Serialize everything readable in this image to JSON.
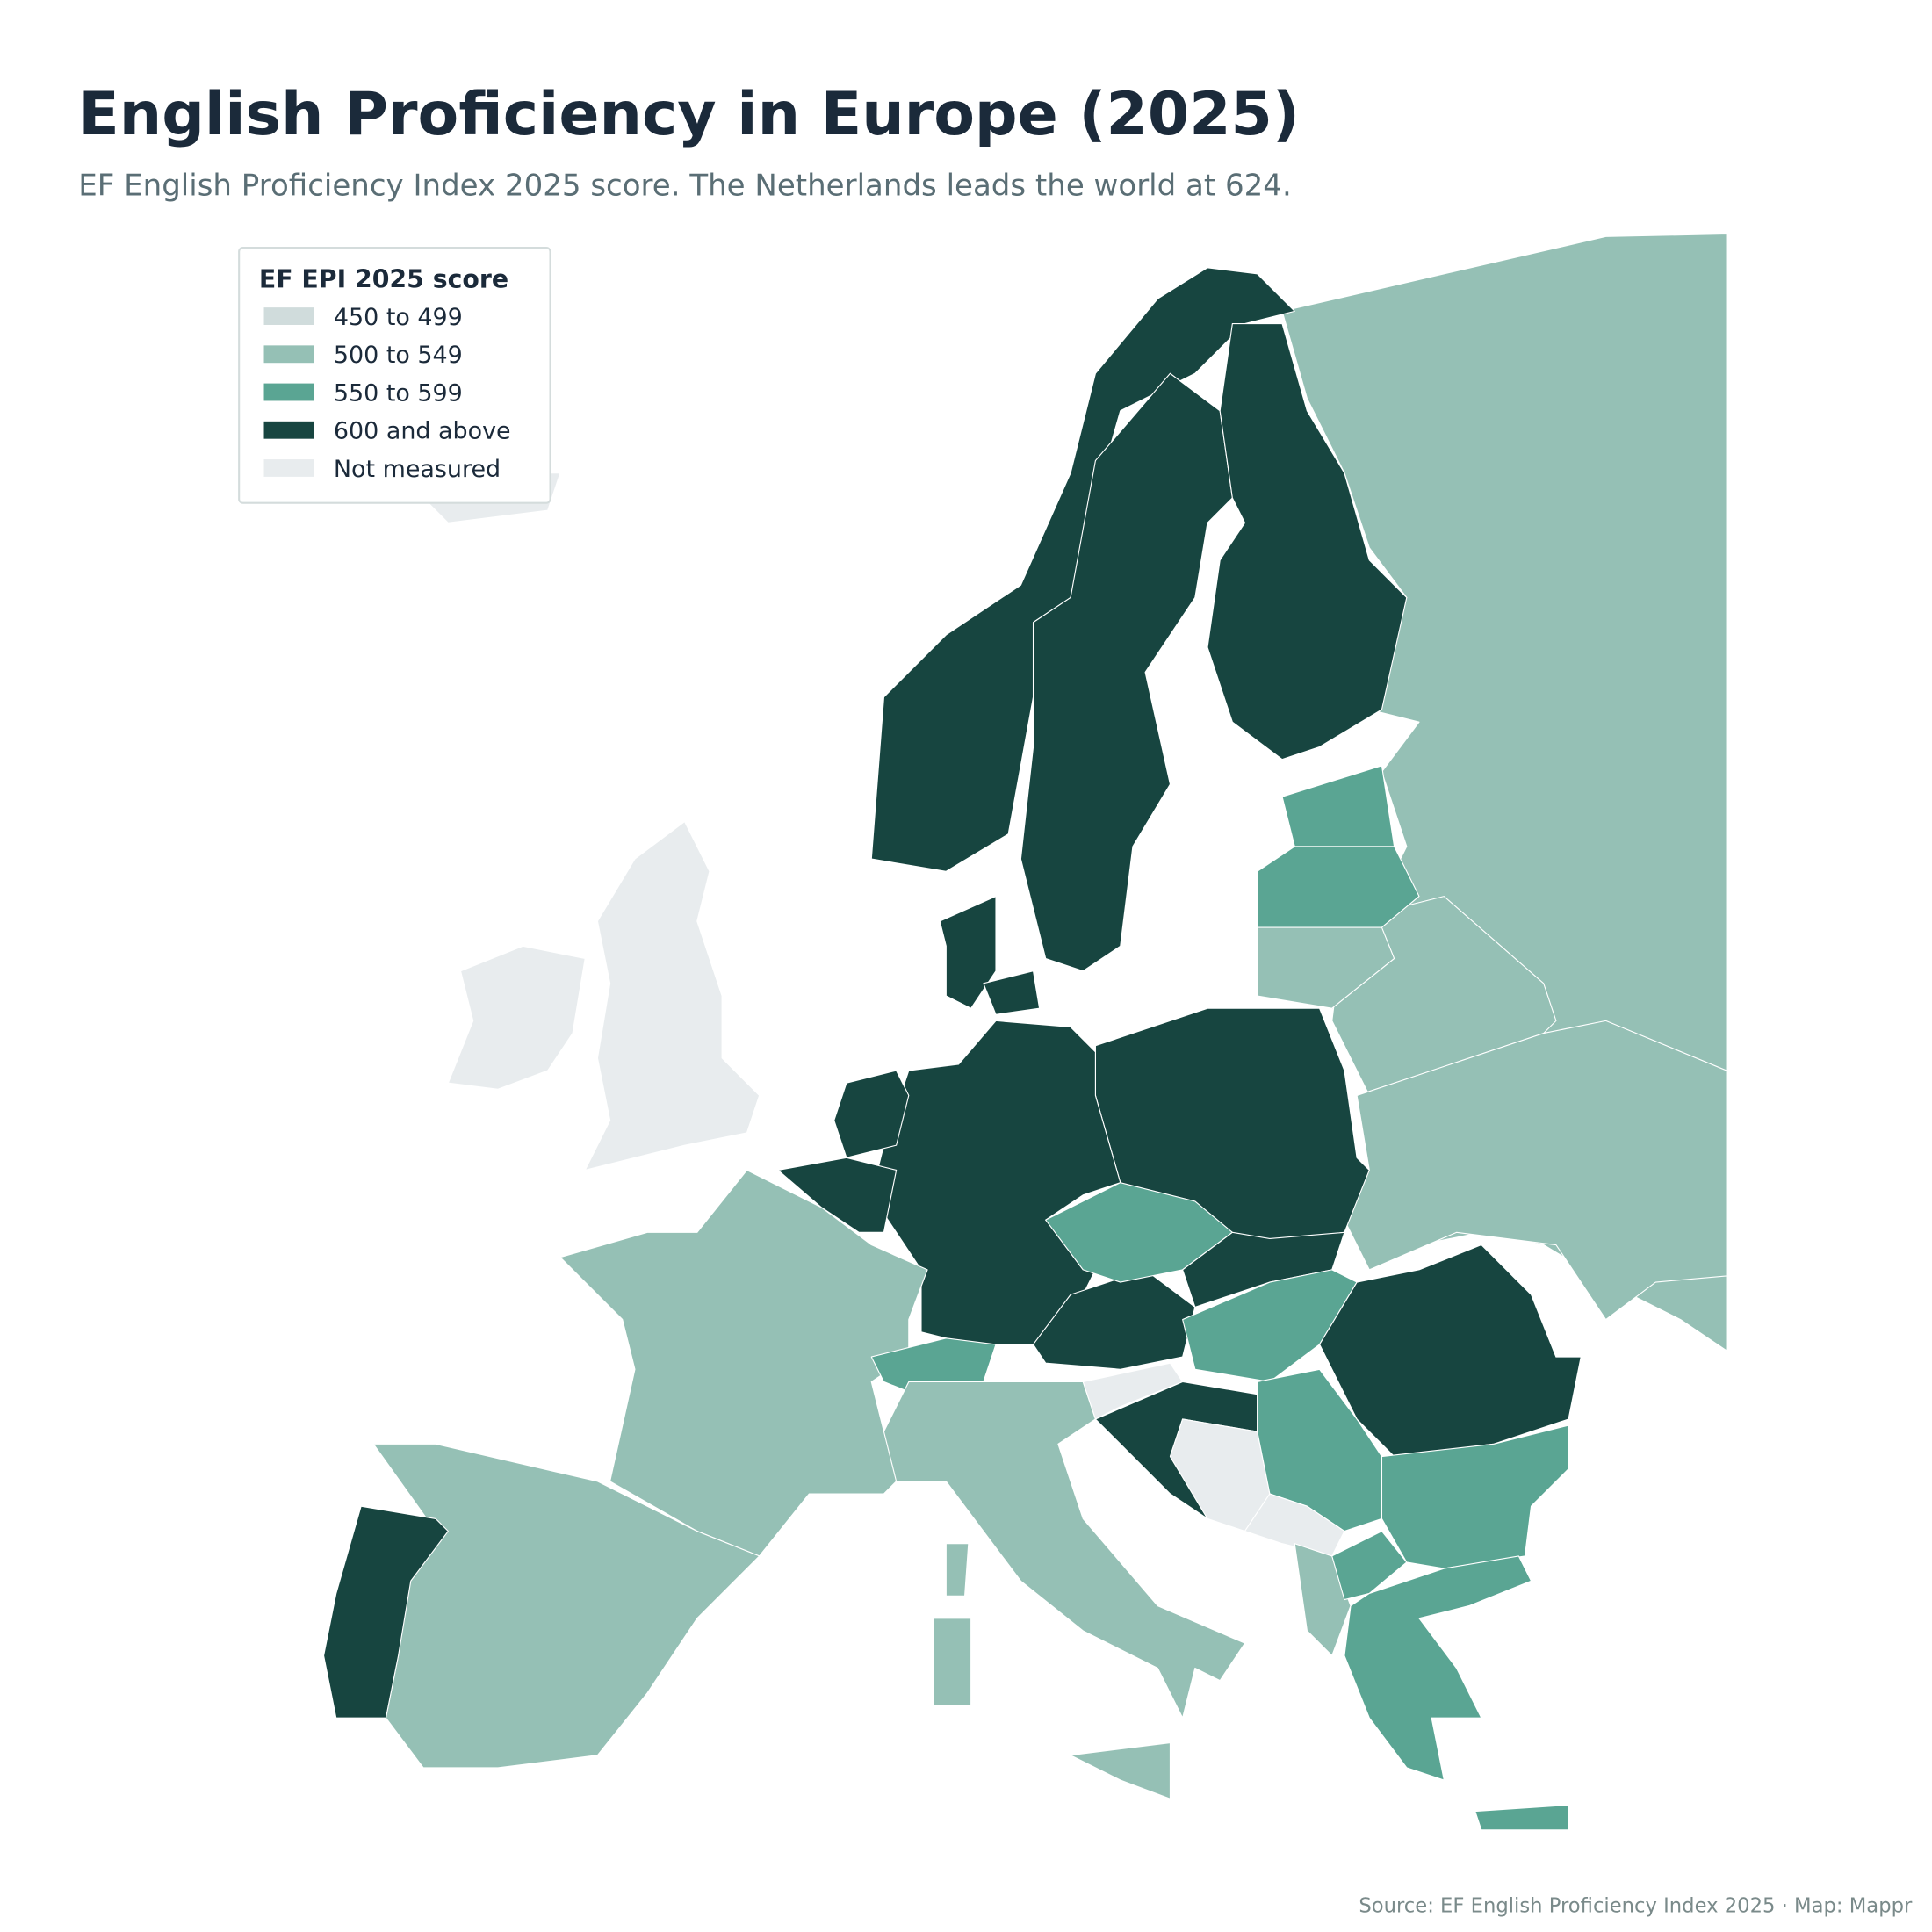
{
  "header": {
    "title": "English Proficiency in Europe (2025)",
    "subtitle": "EF English Proficiency Index 2025 score. The Netherlands leads the world at 624."
  },
  "legend": {
    "title": "EF EPI 2025 score",
    "items": [
      {
        "label": "450 to 499",
        "color": "#d0dcdc"
      },
      {
        "label": "500 to 549",
        "color": "#95c0b5"
      },
      {
        "label": "550 to 599",
        "color": "#5aa593"
      },
      {
        "label": "600 and above",
        "color": "#174540"
      },
      {
        "label": "Not measured",
        "color": "#e8ecee"
      }
    ]
  },
  "source": "Source: EF English Proficiency Index 2025 · Map: Mappr"
}
